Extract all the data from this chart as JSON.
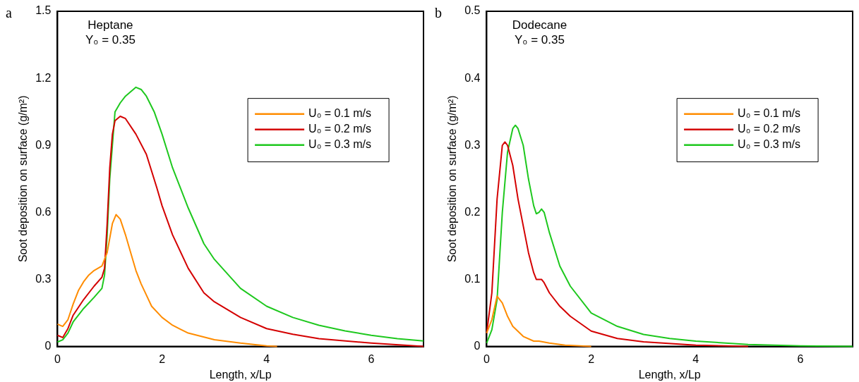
{
  "chart_data": [
    {
      "type": "line",
      "annotations": [
        "a",
        "Heptane",
        "Y₀ = 0.35"
      ],
      "xlabel": "Length, x/Lp",
      "ylabel": "Soot deposition on surface (g/m²)",
      "xlim": [
        0,
        7
      ],
      "xticks": [
        0,
        2,
        4,
        6
      ],
      "ylim": [
        0,
        1.5
      ],
      "yticks": [
        0,
        0.3,
        0.6,
        0.9,
        1.2,
        1.5
      ],
      "legend": "right",
      "grid": false,
      "marker": "none",
      "line_style": "solid",
      "series": [
        {
          "name": "U₀ = 0.1 m/s",
          "color": "#ff8c00",
          "x": [
            0,
            0.1,
            0.2,
            0.3,
            0.4,
            0.5,
            0.6,
            0.7,
            0.85,
            0.95,
            1.05,
            1.12,
            1.2,
            1.3,
            1.4,
            1.5,
            1.6,
            1.7,
            1.8,
            2.0,
            2.2,
            2.5,
            3,
            3.5,
            4,
            4.2
          ],
          "values": [
            0.1,
            0.09,
            0.12,
            0.19,
            0.25,
            0.29,
            0.32,
            0.34,
            0.36,
            0.42,
            0.55,
            0.59,
            0.57,
            0.5,
            0.42,
            0.34,
            0.28,
            0.23,
            0.18,
            0.13,
            0.095,
            0.06,
            0.03,
            0.015,
            0.003,
            0
          ]
        },
        {
          "name": "U₀ = 0.2 m/s",
          "color": "#d40000",
          "x": [
            0,
            0.1,
            0.2,
            0.3,
            0.5,
            0.7,
            0.85,
            0.9,
            0.95,
            1.0,
            1.05,
            1.1,
            1.2,
            1.3,
            1.5,
            1.7,
            1.9,
            2.0,
            2.2,
            2.5,
            2.8,
            3.0,
            3.5,
            4,
            4.5,
            5,
            6,
            7
          ],
          "values": [
            0.05,
            0.04,
            0.08,
            0.14,
            0.21,
            0.27,
            0.31,
            0.35,
            0.55,
            0.8,
            0.95,
            1.01,
            1.03,
            1.02,
            0.95,
            0.86,
            0.71,
            0.63,
            0.5,
            0.35,
            0.24,
            0.2,
            0.13,
            0.08,
            0.055,
            0.035,
            0.015,
            0
          ]
        },
        {
          "name": "U₀ = 0.3 m/s",
          "color": "#1ec81e",
          "x": [
            0,
            0.1,
            0.2,
            0.3,
            0.5,
            0.7,
            0.85,
            0.9,
            0.95,
            1.0,
            1.1,
            1.2,
            1.3,
            1.5,
            1.6,
            1.7,
            1.85,
            2.0,
            2.2,
            2.5,
            2.8,
            3,
            3.5,
            4,
            4.5,
            5,
            5.5,
            6,
            6.5,
            7
          ],
          "values": [
            0.02,
            0.03,
            0.06,
            0.11,
            0.17,
            0.22,
            0.26,
            0.32,
            0.5,
            0.75,
            1.05,
            1.09,
            1.12,
            1.16,
            1.15,
            1.12,
            1.05,
            0.95,
            0.8,
            0.62,
            0.46,
            0.39,
            0.26,
            0.18,
            0.13,
            0.095,
            0.07,
            0.05,
            0.035,
            0.025
          ]
        }
      ]
    },
    {
      "type": "line",
      "annotations": [
        "b",
        "Dodecane",
        "Y₀ = 0.35"
      ],
      "xlabel": "Length, x/Lp",
      "ylabel": "Soot deposition on surface (g/m²)",
      "xlim": [
        0,
        7
      ],
      "xticks": [
        0,
        2,
        4,
        6
      ],
      "ylim": [
        0,
        0.5
      ],
      "yticks": [
        0,
        0.1,
        0.2,
        0.3,
        0.4,
        0.5
      ],
      "legend": "right",
      "grid": false,
      "marker": "none",
      "line_style": "solid",
      "series": [
        {
          "name": "U₀ = 0.1 m/s",
          "color": "#ff8c00",
          "x": [
            0,
            0.1,
            0.2,
            0.3,
            0.4,
            0.5,
            0.7,
            0.9,
            1.0,
            1.2,
            1.5,
            2
          ],
          "values": [
            0.02,
            0.04,
            0.075,
            0.065,
            0.045,
            0.03,
            0.015,
            0.008,
            0.008,
            0.005,
            0.002,
            0
          ]
        },
        {
          "name": "U₀ = 0.2 m/s",
          "color": "#d40000",
          "x": [
            0,
            0.1,
            0.2,
            0.3,
            0.35,
            0.4,
            0.5,
            0.6,
            0.7,
            0.8,
            0.9,
            0.95,
            1.05,
            1.1,
            1.2,
            1.4,
            1.6,
            2.0,
            2.5,
            3,
            4,
            5
          ],
          "values": [
            0.02,
            0.08,
            0.22,
            0.3,
            0.305,
            0.3,
            0.27,
            0.22,
            0.18,
            0.14,
            0.11,
            0.1,
            0.1,
            0.095,
            0.08,
            0.06,
            0.045,
            0.023,
            0.012,
            0.007,
            0.002,
            0
          ]
        },
        {
          "name": "U₀ = 0.3 m/s",
          "color": "#1ec81e",
          "x": [
            0,
            0.1,
            0.2,
            0.3,
            0.4,
            0.5,
            0.55,
            0.6,
            0.7,
            0.8,
            0.9,
            0.95,
            1.0,
            1.05,
            1.1,
            1.2,
            1.4,
            1.6,
            2.0,
            2.5,
            3,
            3.5,
            4,
            5,
            6,
            7
          ],
          "values": [
            0.005,
            0.025,
            0.07,
            0.2,
            0.29,
            0.325,
            0.33,
            0.325,
            0.3,
            0.25,
            0.21,
            0.198,
            0.2,
            0.205,
            0.2,
            0.17,
            0.12,
            0.09,
            0.05,
            0.03,
            0.018,
            0.012,
            0.008,
            0.003,
            0.001,
            0
          ]
        }
      ]
    }
  ]
}
